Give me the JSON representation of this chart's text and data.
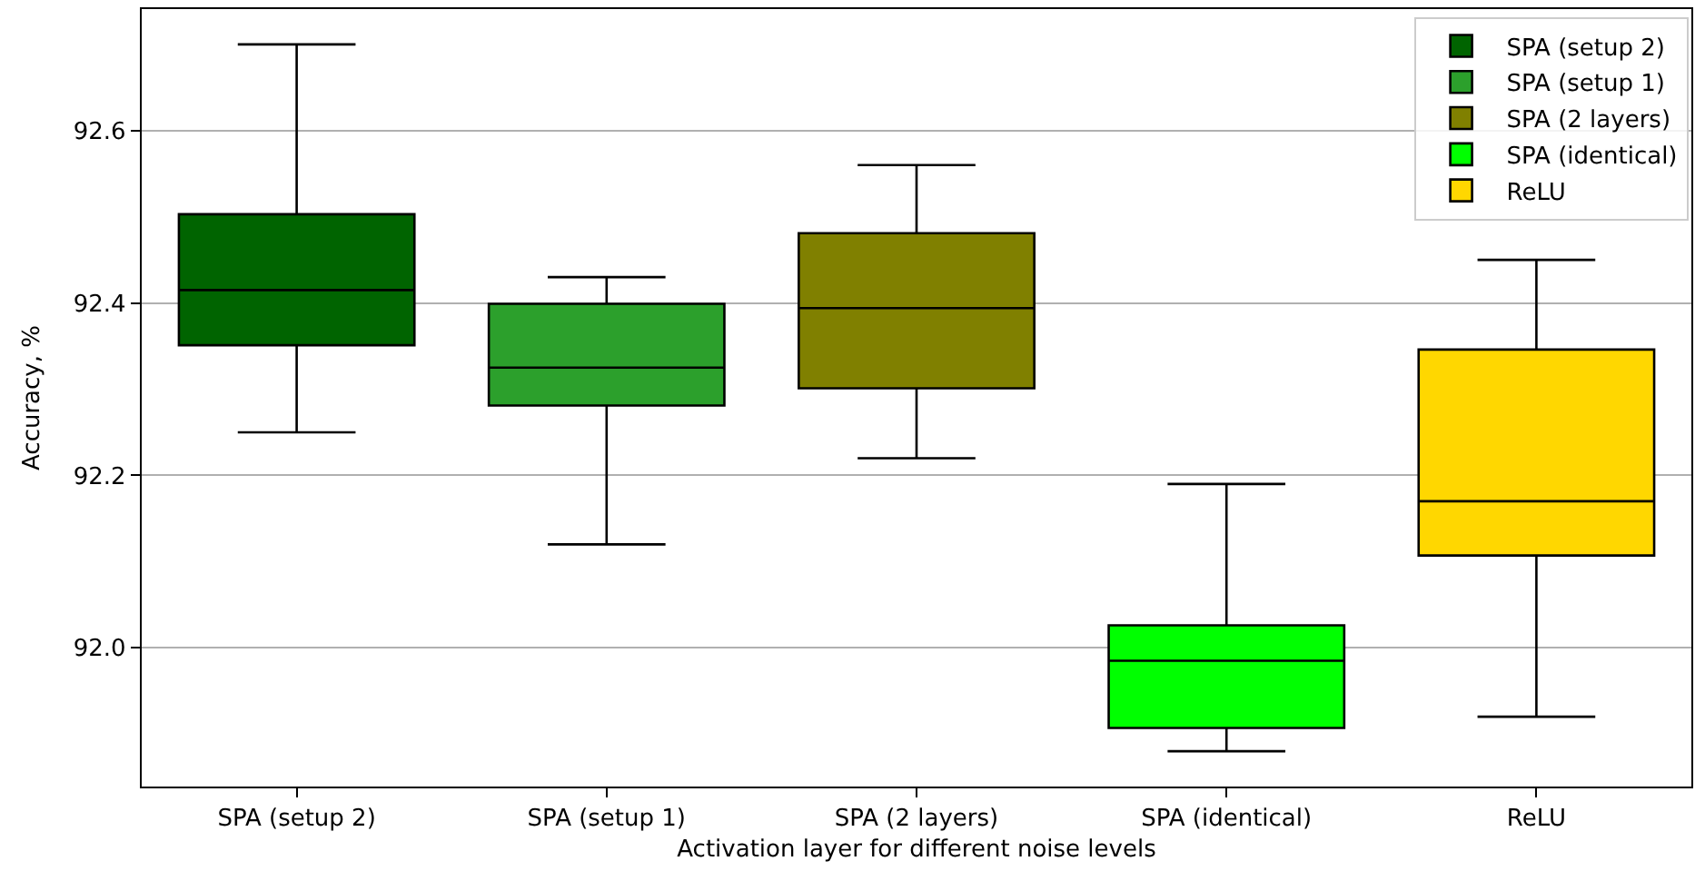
{
  "chart_data": {
    "type": "box",
    "categories": [
      "SPA (setup 2)",
      "SPA (setup 1)",
      "SPA (2 layers)",
      "SPA (identical)",
      "ReLU"
    ],
    "series": [
      {
        "name": "SPA (setup 2)",
        "color": "#006400",
        "boxes": [
          {
            "low": 92.25,
            "q1": 92.351,
            "median": 92.415,
            "q3": 92.503,
            "high": 92.7
          },
          null,
          null,
          null,
          null
        ]
      },
      {
        "name": "SPA (setup 1)",
        "color": "#2ca02c",
        "boxes": [
          null,
          {
            "low": 92.12,
            "q1": 92.281,
            "median": 92.325,
            "q3": 92.399,
            "high": 92.43
          },
          null,
          null,
          null
        ]
      },
      {
        "name": "SPA (2 layers)",
        "color": "#808000",
        "boxes": [
          null,
          null,
          {
            "low": 92.22,
            "q1": 92.301,
            "median": 92.394,
            "q3": 92.481,
            "high": 92.56
          },
          null,
          null
        ]
      },
      {
        "name": "SPA (identical)",
        "color": "#00ff00",
        "boxes": [
          null,
          null,
          null,
          {
            "low": 91.88,
            "q1": 91.907,
            "median": 91.985,
            "q3": 92.026,
            "high": 92.19
          },
          null
        ]
      },
      {
        "name": "ReLU",
        "color": "#ffd700",
        "boxes": [
          null,
          null,
          null,
          null,
          {
            "low": 91.92,
            "q1": 92.107,
            "median": 92.17,
            "q3": 92.346,
            "high": 92.45
          }
        ]
      }
    ],
    "xlabel": "Activation layer for different noise levels",
    "ylabel": "Accuracy, %",
    "ylim": [
      91.839,
      92.741
    ],
    "yticks": [
      {
        "value": 92.0,
        "label": "92.0"
      },
      92.2,
      92.4,
      92.6
    ],
    "grid": "y",
    "legend": "top right"
  }
}
